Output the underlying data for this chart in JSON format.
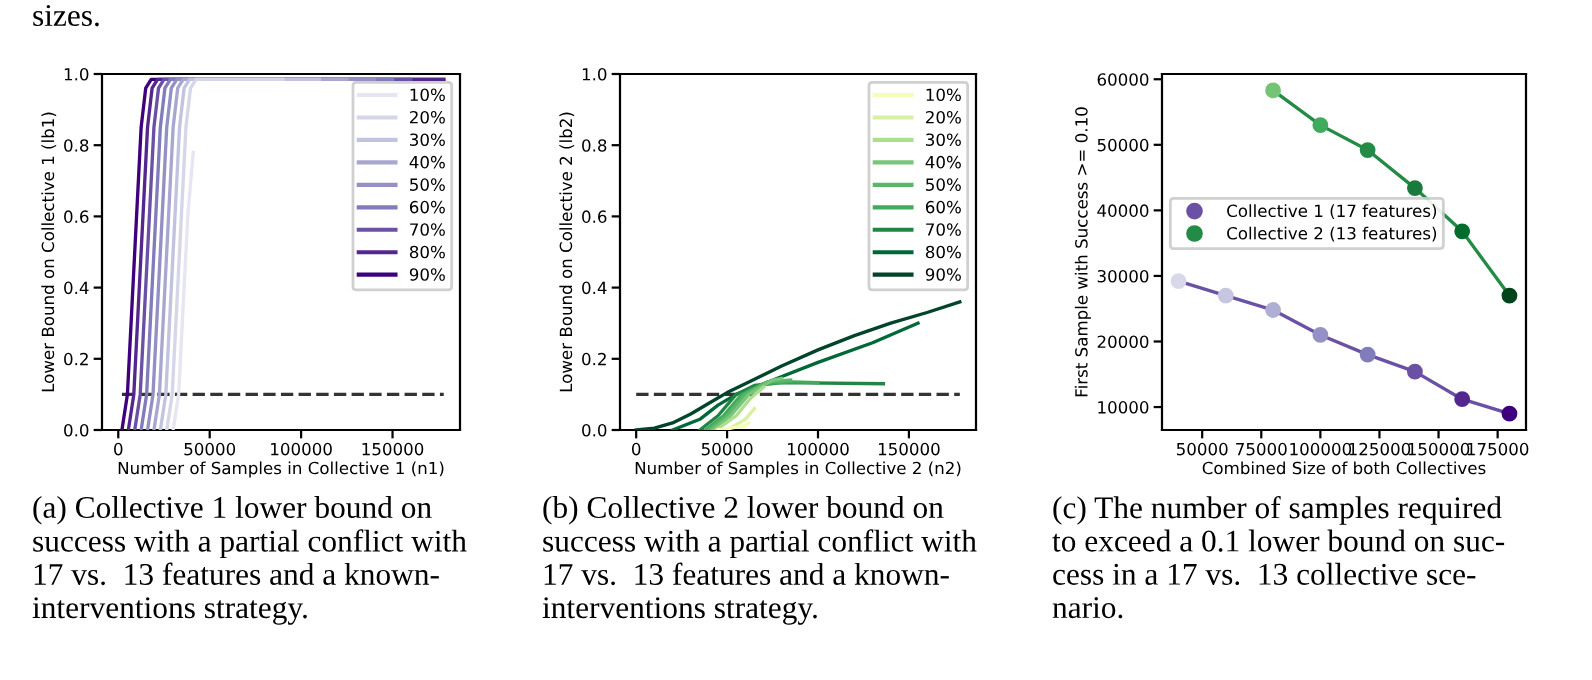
{
  "chart_data": [
    {
      "type": "line",
      "xlabel": "Number of Samples in Collective 1 (n1)",
      "ylabel": "Lower Bound on Collective 1 (lb1)",
      "xlim": [
        -8900,
        186900
      ],
      "ylim": [
        0,
        1.0
      ],
      "xticks": [
        0,
        50000,
        100000,
        150000
      ],
      "yticks": [
        {
          "value": 0,
          "label": "0.0"
        },
        {
          "value": 0.2,
          "label": "0.2"
        },
        {
          "value": 0.4,
          "label": "0.4"
        },
        {
          "value": 0.6,
          "label": "0.6"
        },
        {
          "value": 0.8,
          "label": "0.8"
        },
        {
          "value": 1.0,
          "label": "1.0"
        }
      ],
      "legend": "top right",
      "ref_lines": [
        {
          "axis": "y",
          "value": 0.1,
          "label": null,
          "color": "#333333",
          "line_style": "dashed"
        }
      ],
      "annotations": [
        "(a) Collective 1 lower bound on\nsuccess with a partial conflict with\n17 vs.  13 features and a known-\ninterventions strategy.",
        "sizes."
      ],
      "series": [
        {
          "name": "10%",
          "color": "#e6e5f1",
          "x": [
            30000,
            33000,
            35500,
            38000,
            41000
          ],
          "values": [
            0,
            0.1,
            0.35,
            0.6,
            0.78
          ]
        },
        {
          "name": "20%",
          "color": "#d6d6e9",
          "x": [
            26500,
            29500,
            32000,
            34500,
            37000,
            39500,
            42500,
            90000
          ],
          "values": [
            0,
            0.1,
            0.35,
            0.6,
            0.85,
            0.96,
            0.985,
            0.985
          ]
        },
        {
          "name": "30%",
          "color": "#c2c3df",
          "x": [
            23000,
            26000,
            28500,
            31000,
            33500,
            36000,
            39000,
            110000
          ],
          "values": [
            0,
            0.1,
            0.35,
            0.6,
            0.85,
            0.96,
            0.985,
            0.985
          ]
        },
        {
          "name": "40%",
          "color": "#a9a7cf",
          "x": [
            19500,
            22500,
            25000,
            27500,
            30000,
            32500,
            35500,
            125000
          ],
          "values": [
            0,
            0.1,
            0.35,
            0.6,
            0.85,
            0.96,
            0.985,
            0.985
          ]
        },
        {
          "name": "50%",
          "color": "#9490c4",
          "x": [
            16000,
            19000,
            21500,
            24000,
            26500,
            29000,
            32000,
            140000
          ],
          "values": [
            0,
            0.1,
            0.35,
            0.6,
            0.85,
            0.96,
            0.985,
            0.985
          ]
        },
        {
          "name": "60%",
          "color": "#807dba",
          "x": [
            12500,
            15500,
            18000,
            20500,
            23000,
            25500,
            28500,
            150000
          ],
          "values": [
            0,
            0.1,
            0.35,
            0.6,
            0.85,
            0.96,
            0.985,
            0.985
          ]
        },
        {
          "name": "70%",
          "color": "#6a51a3",
          "x": [
            9000,
            12000,
            14500,
            17000,
            19500,
            22000,
            25000,
            160000
          ],
          "values": [
            0,
            0.1,
            0.35,
            0.6,
            0.85,
            0.96,
            0.985,
            0.985
          ]
        },
        {
          "name": "80%",
          "color": "#54278f",
          "x": [
            5500,
            8500,
            11000,
            13500,
            16000,
            18500,
            21500,
            178000
          ],
          "values": [
            0,
            0.1,
            0.35,
            0.6,
            0.85,
            0.96,
            0.985,
            0.985
          ]
        },
        {
          "name": "90%",
          "color": "#3f007d",
          "x": [
            2000,
            5000,
            7500,
            10000,
            12500,
            15000,
            18000,
            178000
          ],
          "values": [
            0,
            0.1,
            0.35,
            0.6,
            0.85,
            0.96,
            0.985,
            0.985
          ]
        }
      ]
    },
    {
      "type": "line",
      "xlabel": "Number of Samples in Collective 2 (n2)",
      "ylabel": "Lower Bound on Collective 2 (lb2)",
      "xlim": [
        -8900,
        186900
      ],
      "ylim": [
        0,
        1.0
      ],
      "xticks": [
        0,
        50000,
        100000,
        150000
      ],
      "yticks": [
        {
          "value": 0,
          "label": "0.0"
        },
        {
          "value": 0.2,
          "label": "0.2"
        },
        {
          "value": 0.4,
          "label": "0.4"
        },
        {
          "value": 0.6,
          "label": "0.6"
        },
        {
          "value": 0.8,
          "label": "0.8"
        },
        {
          "value": 1.0,
          "label": "1.0"
        }
      ],
      "legend": "top right",
      "ref_lines": [
        {
          "axis": "y",
          "value": 0.1,
          "label": null,
          "color": "#333333",
          "line_style": "dashed"
        }
      ],
      "annotations": [
        "(b) Collective 2 lower bound on\nsuccess with a partial conflict with\n17 vs.  13 features and a known-\ninterventions strategy."
      ],
      "series": [
        {
          "name": "10%",
          "color": "#f7fcb9",
          "x": [
            45000,
            58000,
            62000
          ],
          "values": [
            0,
            0.01,
            0.02
          ]
        },
        {
          "name": "20%",
          "color": "#d9f0a3",
          "x": [
            50000,
            60000,
            65000
          ],
          "values": [
            0,
            0.03,
            0.06
          ]
        },
        {
          "name": "30%",
          "color": "#addd8e",
          "x": [
            44000,
            55000,
            63000,
            70000
          ],
          "values": [
            0,
            0.04,
            0.09,
            0.12
          ]
        },
        {
          "name": "40%",
          "color": "#78c679",
          "x": [
            42000,
            52000,
            62000,
            75000,
            80000
          ],
          "values": [
            0,
            0.04,
            0.1,
            0.14,
            0.145
          ]
        },
        {
          "name": "50%",
          "color": "#5ab76a",
          "x": [
            40000,
            50000,
            60000,
            72000,
            85000
          ],
          "values": [
            0,
            0.04,
            0.1,
            0.135,
            0.14
          ]
        },
        {
          "name": "60%",
          "color": "#41ab5d",
          "x": [
            38000,
            48000,
            58000,
            70000,
            85000,
            100000
          ],
          "values": [
            0,
            0.04,
            0.1,
            0.13,
            0.135,
            0.133
          ]
        },
        {
          "name": "70%",
          "color": "#238443",
          "x": [
            35000,
            45000,
            55000,
            65000,
            80000,
            136000
          ],
          "values": [
            0,
            0.04,
            0.1,
            0.125,
            0.133,
            0.13
          ]
        },
        {
          "name": "80%",
          "color": "#006837",
          "x": [
            20000,
            35000,
            45000,
            55000,
            70000,
            100000,
            130000,
            155000
          ],
          "values": [
            0,
            0.03,
            0.07,
            0.1,
            0.13,
            0.19,
            0.245,
            0.3
          ]
        },
        {
          "name": "90%",
          "color": "#004529",
          "x": [
            0,
            10000,
            20000,
            30000,
            40000,
            50000,
            60000,
            80000,
            100000,
            120000,
            140000,
            160000,
            178000
          ],
          "values": [
            0,
            0.005,
            0.02,
            0.045,
            0.075,
            0.105,
            0.13,
            0.18,
            0.225,
            0.265,
            0.3,
            0.33,
            0.36
          ]
        }
      ]
    },
    {
      "type": "line",
      "xlabel": "Combined Size of both Collectives",
      "ylabel": "First Sample with Success >= 0.10",
      "xlim": [
        33000,
        187000
      ],
      "ylim": [
        6500,
        60800
      ],
      "xticks": [
        50000,
        75000,
        100000,
        125000,
        150000,
        175000
      ],
      "yticks": [
        10000,
        20000,
        30000,
        40000,
        50000,
        60000
      ],
      "legend": "center left",
      "marker": "circle",
      "annotations": [
        "(c) The number of samples required\nto exceed a 0.1 lower bound on suc-\ncess in a 17 vs.  13 collective sce-\nnario."
      ],
      "series": [
        {
          "name": "Collective 1 (17 features)",
          "color": "#6a51a3",
          "x": [
            40000,
            60000,
            80000,
            100000,
            120000,
            140000,
            160000,
            180000
          ],
          "values": [
            29200,
            27000,
            24800,
            21000,
            18000,
            15400,
            11200,
            9000
          ],
          "colors": [
            "#d9d8ea",
            "#c6c6e1",
            "#afaed4",
            "#9691c5",
            "#807dba",
            "#6a51a3",
            "#54278f",
            "#3f007d"
          ]
        },
        {
          "name": "Collective 2 (13 features)",
          "color": "#238b45",
          "x": [
            80000,
            100000,
            120000,
            140000,
            160000,
            180000
          ],
          "values": [
            58300,
            53000,
            49200,
            43400,
            36800,
            27000
          ],
          "colors": [
            "#74c476",
            "#41ab5d",
            "#238b45",
            "#1a7a3d",
            "#006d2c",
            "#00441b"
          ]
        }
      ]
    }
  ]
}
